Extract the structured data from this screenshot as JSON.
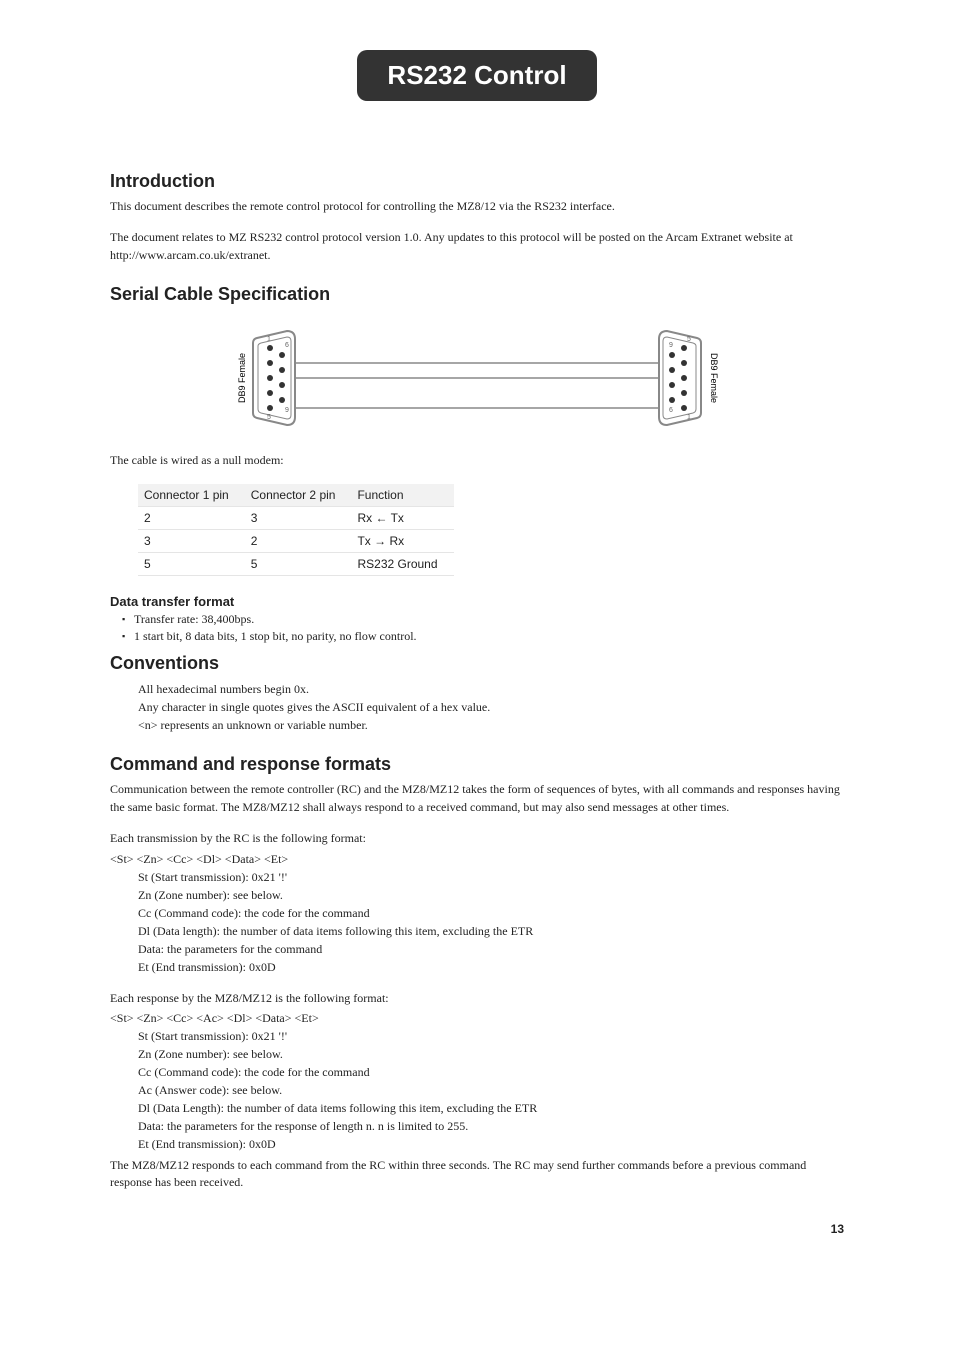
{
  "title_badge": "RS232 Control",
  "intro": {
    "heading": "Introduction",
    "p1": "This document describes the remote control protocol for controlling the MZ8/12 via the RS232 interface.",
    "p2": "The document relates to MZ RS232 control protocol version 1.0. Any updates to this protocol will be posted on the Arcam Extranet website at http://www.arcam.co.uk/extranet."
  },
  "serial": {
    "heading": "Serial Cable Specification",
    "diagram": {
      "left_label": "DB9 Female",
      "right_label": "DB9 Female",
      "pin_labels": [
        "1",
        "5",
        "6",
        "9"
      ]
    },
    "null_modem_text": "The cable is wired as a null modem:",
    "table": {
      "headers": [
        "Connector 1 pin",
        "Connector 2 pin",
        "Function"
      ],
      "rows": [
        [
          "2",
          "3",
          "Rx ← Tx"
        ],
        [
          "3",
          "2",
          "Tx →  Rx"
        ],
        [
          "5",
          "5",
          "RS232 Ground"
        ]
      ]
    }
  },
  "data_transfer": {
    "heading": "Data transfer format",
    "bullets": [
      "Transfer rate: 38,400bps.",
      "1 start bit, 8 data bits, 1 stop bit, no parity, no flow control."
    ]
  },
  "conventions": {
    "heading": "Conventions",
    "lines": [
      "All hexadecimal numbers begin 0x.",
      "Any character in single quotes gives the ASCII equivalent of a hex value.",
      "<n> represents an unknown or variable number."
    ]
  },
  "cmdresp": {
    "heading": "Command and response formats",
    "intro": "Communication between the remote controller (RC) and the MZ8/MZ12 takes the form of sequences of bytes, with all commands and responses having the same basic format. The MZ8/MZ12 shall always respond to a received command, but may also send messages at other times.",
    "rc_intro": "Each transmission by the RC is the following format:",
    "rc_format": "<St> <Zn> <Cc> <Dl> <Data> <Et>",
    "rc_lines": [
      "St (Start transmission): 0x21 '!'",
      "Zn (Zone number): see below.",
      "Cc (Command code): the code for the command",
      "Dl (Data length): the number of data items following this item, excluding the ETR",
      "Data: the parameters for the command",
      "Et (End transmission): 0x0D"
    ],
    "mz_intro": "Each response by the MZ8/MZ12 is the following format:",
    "mz_format": "<St> <Zn> <Cc> <Ac> <Dl> <Data> <Et>",
    "mz_lines": [
      "St (Start transmission): 0x21 '!'",
      "Zn (Zone number): see below.",
      "Cc (Command code): the code for the command",
      "Ac (Answer code): see below.",
      "Dl (Data Length): the number of data items following this item, excluding the ETR",
      "Data: the parameters for the response of length n. n is limited to 255.",
      "Et (End transmission): 0x0D"
    ],
    "footer": "The MZ8/MZ12 responds to each command from the RC within three seconds. The RC may send further commands before a previous command response has been received."
  },
  "page_number": "13"
}
